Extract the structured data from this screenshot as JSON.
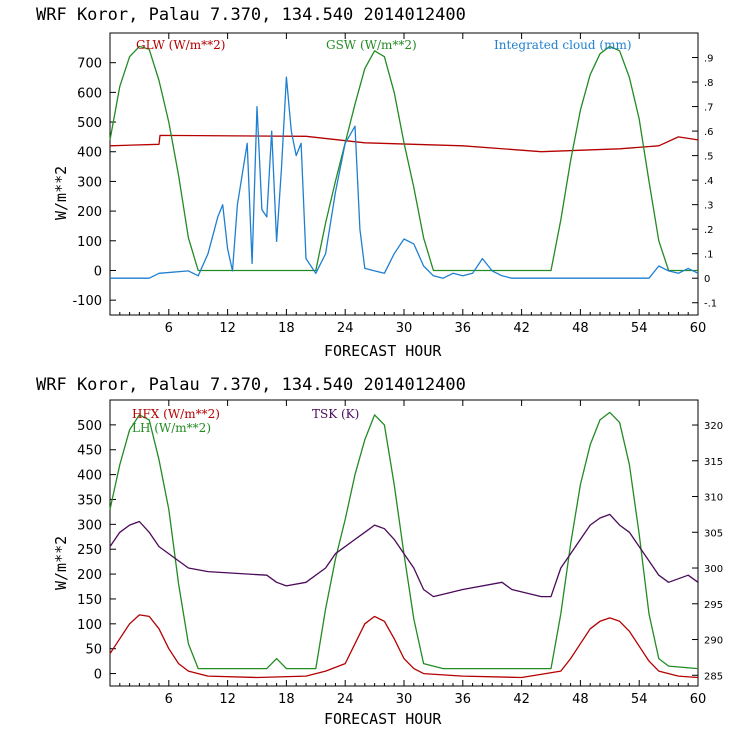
{
  "chart_data": [
    {
      "type": "line",
      "title": "WRF   Koror, Palau   7.370, 134.540  2014012400",
      "xlabel": "FORECAST HOUR",
      "ylabel": "W/m**2",
      "xlim": [
        0,
        60
      ],
      "ylim": [
        -150,
        800
      ],
      "x_ticks": [
        "6",
        "12",
        "18",
        "24",
        "30",
        "36",
        "42",
        "48",
        "54",
        "60"
      ],
      "y_ticks": [
        "-100",
        "0",
        "100",
        "200",
        "300",
        "400",
        "500",
        "600",
        "700"
      ],
      "y2_ticks": [
        "-.1",
        "0",
        ".1",
        ".2",
        ".3",
        ".4",
        ".5",
        ".6",
        ".7",
        ".8",
        ".9"
      ],
      "y2lim": [
        -0.15,
        1.0
      ],
      "series": [
        {
          "name": "GLW (W/m**2)",
          "color": "#b40000",
          "axis": "left",
          "points": [
            [
              0,
              420
            ],
            [
              5,
              425
            ],
            [
              5.1,
              455
            ],
            [
              20,
              452
            ],
            [
              26,
              430
            ],
            [
              36,
              420
            ],
            [
              44,
              400
            ],
            [
              52,
              410
            ],
            [
              56,
              420
            ],
            [
              58,
              450
            ],
            [
              60,
              440
            ]
          ]
        },
        {
          "name": "GSW (W/m**2)",
          "color": "#228b22",
          "axis": "left",
          "points": [
            [
              0,
              440
            ],
            [
              1,
              620
            ],
            [
              2,
              720
            ],
            [
              3,
              755
            ],
            [
              4,
              745
            ],
            [
              5,
              640
            ],
            [
              6,
              500
            ],
            [
              7,
              320
            ],
            [
              8,
              110
            ],
            [
              9,
              0
            ],
            [
              21,
              0
            ],
            [
              22,
              160
            ],
            [
              23,
              300
            ],
            [
              24,
              430
            ],
            [
              25,
              560
            ],
            [
              26,
              680
            ],
            [
              27,
              740
            ],
            [
              28,
              720
            ],
            [
              29,
              600
            ],
            [
              30,
              430
            ],
            [
              31,
              280
            ],
            [
              32,
              110
            ],
            [
              33,
              0
            ],
            [
              45,
              0
            ],
            [
              46,
              170
            ],
            [
              47,
              370
            ],
            [
              48,
              540
            ],
            [
              49,
              660
            ],
            [
              50,
              730
            ],
            [
              51,
              755
            ],
            [
              52,
              740
            ],
            [
              53,
              650
            ],
            [
              54,
              510
            ],
            [
              55,
              300
            ],
            [
              56,
              100
            ],
            [
              57,
              0
            ],
            [
              60,
              0
            ]
          ]
        },
        {
          "name": "Integrated cloud (mm)",
          "color": "#1f7fd0",
          "axis": "right",
          "points": [
            [
              0,
              0
            ],
            [
              4,
              0
            ],
            [
              5,
              0.02
            ],
            [
              8,
              0.03
            ],
            [
              9,
              0.01
            ],
            [
              10,
              0.1
            ],
            [
              11,
              0.25
            ],
            [
              11.5,
              0.3
            ],
            [
              12,
              0.12
            ],
            [
              12.5,
              0.03
            ],
            [
              13,
              0.3
            ],
            [
              14,
              0.55
            ],
            [
              14.5,
              0.06
            ],
            [
              15,
              0.7
            ],
            [
              15.5,
              0.28
            ],
            [
              16,
              0.25
            ],
            [
              16.5,
              0.6
            ],
            [
              17,
              0.15
            ],
            [
              17.5,
              0.45
            ],
            [
              18,
              0.82
            ],
            [
              18.5,
              0.6
            ],
            [
              19,
              0.5
            ],
            [
              19.5,
              0.55
            ],
            [
              20,
              0.08
            ],
            [
              21,
              0.02
            ],
            [
              22,
              0.1
            ],
            [
              23,
              0.35
            ],
            [
              24,
              0.55
            ],
            [
              25,
              0.62
            ],
            [
              25.5,
              0.2
            ],
            [
              26,
              0.04
            ],
            [
              27,
              0.03
            ],
            [
              28,
              0.02
            ],
            [
              29,
              0.1
            ],
            [
              30,
              0.16
            ],
            [
              31,
              0.14
            ],
            [
              32,
              0.05
            ],
            [
              33,
              0.01
            ],
            [
              34,
              0.0
            ],
            [
              35,
              0.02
            ],
            [
              36,
              0.01
            ],
            [
              37,
              0.02
            ],
            [
              38,
              0.08
            ],
            [
              39,
              0.03
            ],
            [
              40,
              0.01
            ],
            [
              41,
              0.0
            ],
            [
              55,
              0.0
            ],
            [
              56,
              0.05
            ],
            [
              57,
              0.03
            ],
            [
              58,
              0.02
            ],
            [
              59,
              0.04
            ],
            [
              60,
              0.02
            ]
          ]
        }
      ]
    },
    {
      "type": "line",
      "title": "WRF   Koror, Palau   7.370, 134.540  2014012400",
      "xlabel": "FORECAST HOUR",
      "ylabel": "W/m**2",
      "xlim": [
        0,
        60
      ],
      "ylim": [
        -25,
        550
      ],
      "x_ticks": [
        "6",
        "12",
        "18",
        "24",
        "30",
        "36",
        "42",
        "48",
        "54",
        "60"
      ],
      "y_ticks": [
        "0",
        "50",
        "100",
        "150",
        "200",
        "250",
        "300",
        "350",
        "400",
        "450",
        "500"
      ],
      "y2_ticks": [
        "285",
        "290",
        "295",
        "300",
        "305",
        "310",
        "315",
        "320"
      ],
      "y2lim": [
        283.5,
        323.5
      ],
      "series": [
        {
          "name": "HFX (W/m**2)",
          "color": "#b40000",
          "axis": "left",
          "points": [
            [
              0,
              40
            ],
            [
              1,
              70
            ],
            [
              2,
              100
            ],
            [
              3,
              118
            ],
            [
              4,
              115
            ],
            [
              5,
              90
            ],
            [
              6,
              50
            ],
            [
              7,
              20
            ],
            [
              8,
              5
            ],
            [
              10,
              -5
            ],
            [
              15,
              -8
            ],
            [
              20,
              -5
            ],
            [
              22,
              5
            ],
            [
              24,
              20
            ],
            [
              25,
              60
            ],
            [
              26,
              100
            ],
            [
              27,
              115
            ],
            [
              28,
              105
            ],
            [
              29,
              70
            ],
            [
              30,
              30
            ],
            [
              31,
              10
            ],
            [
              32,
              0
            ],
            [
              36,
              -5
            ],
            [
              42,
              -8
            ],
            [
              46,
              5
            ],
            [
              47,
              30
            ],
            [
              48,
              60
            ],
            [
              49,
              90
            ],
            [
              50,
              105
            ],
            [
              51,
              112
            ],
            [
              52,
              105
            ],
            [
              53,
              85
            ],
            [
              54,
              55
            ],
            [
              55,
              25
            ],
            [
              56,
              5
            ],
            [
              58,
              -5
            ],
            [
              60,
              -8
            ]
          ]
        },
        {
          "name": "LH (W/m**2)",
          "color": "#228b22",
          "axis": "left",
          "points": [
            [
              0,
              330
            ],
            [
              1,
              420
            ],
            [
              2,
              490
            ],
            [
              3,
              520
            ],
            [
              4,
              510
            ],
            [
              5,
              430
            ],
            [
              6,
              330
            ],
            [
              7,
              180
            ],
            [
              8,
              60
            ],
            [
              9,
              10
            ],
            [
              16,
              10
            ],
            [
              17,
              30
            ],
            [
              18,
              10
            ],
            [
              21,
              10
            ],
            [
              22,
              130
            ],
            [
              23,
              230
            ],
            [
              24,
              310
            ],
            [
              25,
              400
            ],
            [
              26,
              470
            ],
            [
              27,
              520
            ],
            [
              28,
              500
            ],
            [
              29,
              380
            ],
            [
              30,
              240
            ],
            [
              31,
              110
            ],
            [
              32,
              20
            ],
            [
              34,
              10
            ],
            [
              45,
              10
            ],
            [
              46,
              120
            ],
            [
              47,
              260
            ],
            [
              48,
              380
            ],
            [
              49,
              460
            ],
            [
              50,
              510
            ],
            [
              51,
              525
            ],
            [
              52,
              505
            ],
            [
              53,
              420
            ],
            [
              54,
              280
            ],
            [
              55,
              120
            ],
            [
              56,
              30
            ],
            [
              57,
              15
            ],
            [
              60,
              10
            ]
          ]
        },
        {
          "name": "TSK (K)",
          "color": "#4b0a5a",
          "axis": "right",
          "points": [
            [
              0,
              303
            ],
            [
              1,
              305
            ],
            [
              2,
              306
            ],
            [
              3,
              306.5
            ],
            [
              4,
              305
            ],
            [
              5,
              303
            ],
            [
              7,
              301
            ],
            [
              8,
              300
            ],
            [
              10,
              299.5
            ],
            [
              16,
              299
            ],
            [
              17,
              298
            ],
            [
              18,
              297.5
            ],
            [
              20,
              298
            ],
            [
              22,
              300
            ],
            [
              23,
              302
            ],
            [
              25,
              304
            ],
            [
              26,
              305
            ],
            [
              27,
              306
            ],
            [
              28,
              305.5
            ],
            [
              29,
              304
            ],
            [
              30,
              302
            ],
            [
              31,
              300
            ],
            [
              32,
              297
            ],
            [
              33,
              296
            ],
            [
              36,
              297
            ],
            [
              40,
              298
            ],
            [
              41,
              297
            ],
            [
              44,
              296
            ],
            [
              45,
              296
            ],
            [
              46,
              300
            ],
            [
              47,
              302
            ],
            [
              48,
              304
            ],
            [
              49,
              306
            ],
            [
              50,
              307
            ],
            [
              51,
              307.5
            ],
            [
              52,
              306
            ],
            [
              53,
              305
            ],
            [
              54,
              303
            ],
            [
              55,
              301
            ],
            [
              56,
              299
            ],
            [
              57,
              298
            ],
            [
              59,
              299
            ],
            [
              60,
              298
            ]
          ]
        }
      ]
    }
  ]
}
